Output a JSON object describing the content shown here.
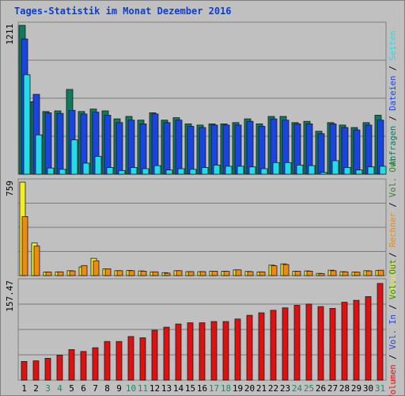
{
  "title": "Tages-Statistik im Monat Dezember 2016",
  "colors": {
    "anfragen": "#0e7a5e",
    "dateien": "#1a44e0",
    "seiten": "#22dde8",
    "besuche": "#f5ef22",
    "rechner": "#f08a10",
    "vol_in": "#2244dd",
    "vol_out": "#2a8a2a",
    "volumen": "#e01010",
    "grid": "#7a7a7a",
    "bg": "#c0c0c0",
    "weekend_day": "#22876a",
    "weekday": "#000000"
  },
  "chart_data": [
    {
      "type": "bar",
      "panel": "top",
      "max_label": "1211",
      "ylim": [
        0,
        1211
      ],
      "grid": true,
      "right_label": [
        {
          "text": "Anfragen",
          "color": "anfragen"
        },
        {
          "text": " / ",
          "color": "weekday"
        },
        {
          "text": "Dateien",
          "color": "dateien"
        },
        {
          "text": " / ",
          "color": "weekday"
        },
        {
          "text": "Seiten",
          "color": "seiten"
        }
      ],
      "categories": [
        "1",
        "2",
        "3",
        "4",
        "5",
        "6",
        "7",
        "8",
        "9",
        "10",
        "11",
        "12",
        "13",
        "14",
        "15",
        "16",
        "17",
        "18",
        "19",
        "20",
        "21",
        "22",
        "23",
        "24",
        "25",
        "26",
        "27",
        "28",
        "29",
        "30",
        "31"
      ],
      "series": [
        {
          "name": "Anfragen",
          "color": "anfragen",
          "values": [
            1211,
            590,
            510,
            515,
            690,
            510,
            530,
            515,
            450,
            470,
            440,
            500,
            440,
            460,
            410,
            400,
            410,
            410,
            420,
            450,
            410,
            470,
            470,
            420,
            430,
            350,
            420,
            400,
            380,
            420,
            480
          ]
        },
        {
          "name": "Dateien",
          "color": "dateien",
          "values": [
            1100,
            650,
            500,
            495,
            520,
            490,
            505,
            480,
            420,
            440,
            410,
            490,
            420,
            440,
            390,
            380,
            400,
            400,
            400,
            430,
            390,
            450,
            440,
            410,
            410,
            330,
            410,
            380,
            360,
            400,
            440
          ]
        },
        {
          "name": "Seiten",
          "color": "seiten",
          "values": [
            810,
            320,
            50,
            40,
            280,
            90,
            145,
            55,
            30,
            55,
            45,
            70,
            35,
            45,
            40,
            55,
            75,
            65,
            65,
            60,
            45,
            95,
            95,
            75,
            70,
            15,
            110,
            55,
            35,
            60,
            65
          ]
        }
      ]
    },
    {
      "type": "bar",
      "panel": "middle",
      "max_label": "759",
      "ylim": [
        0,
        759
      ],
      "grid": true,
      "right_label": [
        {
          "text": "Besuche",
          "color": "besuche"
        },
        {
          "text": " / ",
          "color": "weekday"
        },
        {
          "text": "Rechner",
          "color": "rechner"
        },
        {
          "text": " / ",
          "color": "weekday"
        },
        {
          "text": "Vol. Out",
          "color": "vol_out"
        }
      ],
      "categories": [
        "1",
        "2",
        "3",
        "4",
        "5",
        "6",
        "7",
        "8",
        "9",
        "10",
        "11",
        "12",
        "13",
        "14",
        "15",
        "16",
        "17",
        "18",
        "19",
        "20",
        "21",
        "22",
        "23",
        "24",
        "25",
        "26",
        "27",
        "28",
        "29",
        "30",
        "31"
      ],
      "series": [
        {
          "name": "Besuche",
          "color": "besuche",
          "values": [
            759,
            265,
            28,
            30,
            40,
            70,
            140,
            55,
            40,
            42,
            38,
            30,
            24,
            40,
            32,
            32,
            36,
            35,
            46,
            34,
            30,
            85,
            95,
            35,
            38,
            18,
            44,
            32,
            28,
            40,
            42
          ]
        },
        {
          "name": "Rechner",
          "color": "rechner",
          "values": [
            480,
            240,
            28,
            30,
            38,
            82,
            120,
            55,
            40,
            40,
            36,
            30,
            20,
            40,
            32,
            32,
            36,
            35,
            46,
            32,
            30,
            80,
            90,
            35,
            36,
            16,
            40,
            30,
            28,
            38,
            44
          ]
        }
      ]
    },
    {
      "type": "bar",
      "panel": "bottom",
      "max_label": "157.47",
      "ylim": [
        0,
        157.47
      ],
      "grid": true,
      "right_label": [
        {
          "text": "Volumen",
          "color": "volumen"
        },
        {
          "text": " / ",
          "color": "weekday"
        },
        {
          "text": "Vol. In",
          "color": "vol_in"
        },
        {
          "text": " / ",
          "color": "weekday"
        },
        {
          "text": "Vol. Out",
          "color": "vol_out"
        }
      ],
      "categories": [
        "1",
        "2",
        "3",
        "4",
        "5",
        "6",
        "7",
        "8",
        "9",
        "10",
        "11",
        "12",
        "13",
        "14",
        "15",
        "16",
        "17",
        "18",
        "19",
        "20",
        "21",
        "22",
        "23",
        "24",
        "25",
        "26",
        "27",
        "28",
        "29",
        "30",
        "31"
      ],
      "series": [
        {
          "name": "Volumen",
          "color": "volumen",
          "values": [
            30,
            31,
            35,
            40,
            49,
            46,
            52,
            62,
            62,
            70,
            68,
            80,
            85,
            90,
            92,
            92,
            94,
            94,
            98,
            104,
            108,
            112,
            116,
            120,
            122,
            118,
            115,
            125,
            128,
            134,
            155
          ]
        }
      ]
    }
  ],
  "weekend_days": [
    "3",
    "4",
    "10",
    "11",
    "17",
    "18",
    "24",
    "25",
    "31"
  ]
}
